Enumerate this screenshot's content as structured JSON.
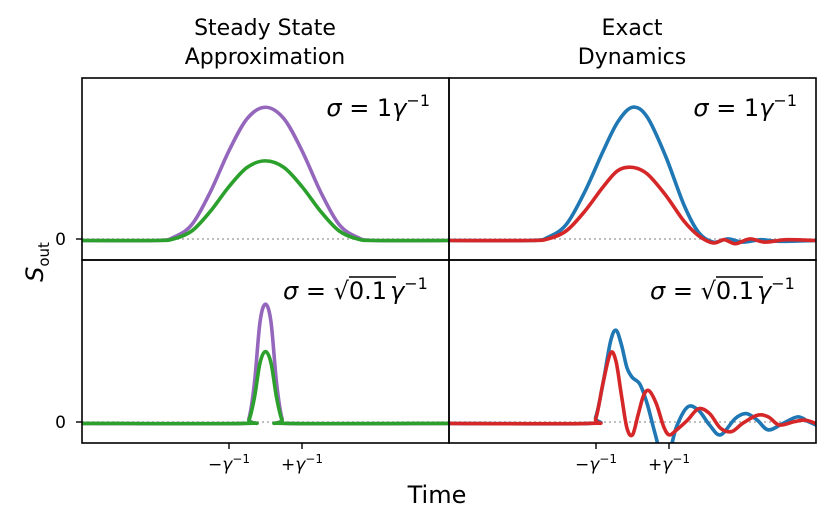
{
  "column_titles": {
    "left": [
      "Steady State",
      "Approximation"
    ],
    "right": [
      "Exact",
      "Dynamics"
    ]
  },
  "annotations": {
    "top": {
      "sigma": "σ",
      "eq": " = 1",
      "gamma": "γ",
      "sup": "−1"
    },
    "bottom": {
      "sigma": "σ",
      "eq": " = ",
      "sqrt": "√",
      "arg": "0.1",
      "gamma": "γ",
      "sup": "−1"
    }
  },
  "axes": {
    "ylabel": {
      "base": "S",
      "sub": "out"
    },
    "xlabel": "Time",
    "ytick": "0",
    "xticks": [
      {
        "sign": "−",
        "base": "γ",
        "sup": "−1",
        "value": -1
      },
      {
        "sign": "+",
        "base": "γ",
        "sup": "−1",
        "value": 1
      }
    ]
  },
  "colors": {
    "purple": "#9467bd",
    "green": "#2ca02c",
    "blue": "#1f77b4",
    "red": "#d62728",
    "zero_line": "#aaaaaa"
  },
  "chart_data": [
    {
      "panel": "top-left",
      "type": "line",
      "xlim": [
        -5,
        5
      ],
      "ylim": [
        -0.12,
        1.0
      ],
      "series": [
        {
          "color": "purple",
          "points": [
            [
              -5,
              0
            ],
            [
              -3,
              0
            ],
            [
              -2.5,
              0.02
            ],
            [
              -2,
              0.1
            ],
            [
              -1.5,
              0.3
            ],
            [
              -1,
              0.55
            ],
            [
              -0.5,
              0.75
            ],
            [
              0,
              0.82
            ],
            [
              0.5,
              0.75
            ],
            [
              1,
              0.55
            ],
            [
              1.5,
              0.3
            ],
            [
              2,
              0.1
            ],
            [
              2.5,
              0.02
            ],
            [
              3,
              0
            ],
            [
              5,
              0
            ]
          ]
        },
        {
          "color": "green",
          "points": [
            [
              -5,
              0
            ],
            [
              -3,
              0
            ],
            [
              -2.5,
              0.01
            ],
            [
              -2,
              0.06
            ],
            [
              -1.5,
              0.18
            ],
            [
              -1,
              0.33
            ],
            [
              -0.5,
              0.45
            ],
            [
              0,
              0.49
            ],
            [
              0.5,
              0.45
            ],
            [
              1,
              0.33
            ],
            [
              1.5,
              0.18
            ],
            [
              2,
              0.06
            ],
            [
              2.5,
              0.01
            ],
            [
              3,
              0
            ],
            [
              5,
              0
            ]
          ]
        }
      ]
    },
    {
      "panel": "top-right",
      "type": "line",
      "xlim": [
        -5,
        5
      ],
      "ylim": [
        -0.12,
        1.0
      ],
      "series": [
        {
          "color": "blue",
          "points": [
            [
              -5,
              0
            ],
            [
              -2.8,
              0
            ],
            [
              -2.3,
              0.02
            ],
            [
              -1.8,
              0.1
            ],
            [
              -1.3,
              0.3
            ],
            [
              -0.8,
              0.55
            ],
            [
              -0.4,
              0.73
            ],
            [
              0,
              0.82
            ],
            [
              0.4,
              0.76
            ],
            [
              0.9,
              0.52
            ],
            [
              1.4,
              0.22
            ],
            [
              1.8,
              0.05
            ],
            [
              2.2,
              -0.01
            ],
            [
              2.6,
              0.01
            ],
            [
              3.0,
              -0.01
            ],
            [
              3.5,
              0.005
            ],
            [
              4.0,
              -0.005
            ],
            [
              5,
              0
            ]
          ]
        },
        {
          "color": "red",
          "points": [
            [
              -5,
              0
            ],
            [
              -2.8,
              0
            ],
            [
              -2.3,
              0.01
            ],
            [
              -1.8,
              0.06
            ],
            [
              -1.3,
              0.18
            ],
            [
              -0.8,
              0.33
            ],
            [
              -0.4,
              0.43
            ],
            [
              0,
              0.45
            ],
            [
              0.4,
              0.41
            ],
            [
              0.9,
              0.28
            ],
            [
              1.4,
              0.12
            ],
            [
              1.8,
              0.03
            ],
            [
              2.2,
              -0.015
            ],
            [
              2.5,
              0.005
            ],
            [
              2.8,
              -0.02
            ],
            [
              3.2,
              0.01
            ],
            [
              3.6,
              -0.01
            ],
            [
              4.2,
              0.005
            ],
            [
              5,
              0
            ]
          ]
        }
      ]
    },
    {
      "panel": "bottom-left",
      "type": "line",
      "xlim": [
        -5,
        5
      ],
      "ylim": [
        -0.12,
        1.0
      ],
      "series": [
        {
          "color": "purple",
          "points": [
            [
              -5,
              0
            ],
            [
              -0.6,
              0
            ],
            [
              -0.45,
              0.03
            ],
            [
              -0.3,
              0.25
            ],
            [
              -0.15,
              0.62
            ],
            [
              0,
              0.73
            ],
            [
              0.15,
              0.62
            ],
            [
              0.3,
              0.25
            ],
            [
              0.45,
              0.03
            ],
            [
              0.6,
              0
            ],
            [
              5,
              0
            ]
          ]
        },
        {
          "color": "green",
          "points": [
            [
              -5,
              0
            ],
            [
              -0.6,
              0
            ],
            [
              -0.45,
              0.02
            ],
            [
              -0.3,
              0.16
            ],
            [
              -0.15,
              0.37
            ],
            [
              0,
              0.44
            ],
            [
              0.15,
              0.37
            ],
            [
              0.3,
              0.16
            ],
            [
              0.45,
              0.02
            ],
            [
              0.6,
              0
            ],
            [
              5,
              0
            ]
          ]
        }
      ]
    },
    {
      "panel": "bottom-right",
      "type": "line",
      "xlim": [
        -5,
        5
      ],
      "ylim": [
        -0.12,
        1.0
      ],
      "series": [
        {
          "color": "blue",
          "points": [
            [
              -5,
              0
            ],
            [
              -1.2,
              0
            ],
            [
              -1.0,
              0.04
            ],
            [
              -0.8,
              0.25
            ],
            [
              -0.6,
              0.5
            ],
            [
              -0.45,
              0.57
            ],
            [
              -0.3,
              0.48
            ],
            [
              -0.15,
              0.34
            ],
            [
              0,
              0.28
            ],
            [
              0.2,
              0.24
            ],
            [
              0.4,
              0.12
            ],
            [
              0.6,
              -0.05
            ],
            [
              0.8,
              -0.2
            ],
            [
              1.0,
              -0.18
            ],
            [
              1.2,
              -0.02
            ],
            [
              1.5,
              0.1
            ],
            [
              1.8,
              0.08
            ],
            [
              2.1,
              -0.01
            ],
            [
              2.4,
              -0.07
            ],
            [
              2.8,
              0.03
            ],
            [
              3.1,
              0.06
            ],
            [
              3.4,
              0.02
            ],
            [
              3.7,
              -0.04
            ],
            [
              4.1,
              0.0
            ],
            [
              4.5,
              0.04
            ],
            [
              4.8,
              0.01
            ],
            [
              5,
              -0.01
            ]
          ]
        },
        {
          "color": "red",
          "points": [
            [
              -5,
              0
            ],
            [
              -1.2,
              0
            ],
            [
              -1.0,
              0.03
            ],
            [
              -0.8,
              0.25
            ],
            [
              -0.6,
              0.43
            ],
            [
              -0.45,
              0.38
            ],
            [
              -0.3,
              0.17
            ],
            [
              -0.15,
              -0.03
            ],
            [
              0,
              -0.07
            ],
            [
              0.15,
              0.05
            ],
            [
              0.3,
              0.17
            ],
            [
              0.45,
              0.2
            ],
            [
              0.65,
              0.12
            ],
            [
              0.85,
              -0.02
            ],
            [
              1.0,
              -0.07
            ],
            [
              1.2,
              -0.04
            ],
            [
              1.5,
              0.02
            ],
            [
              1.8,
              0.09
            ],
            [
              2.1,
              0.06
            ],
            [
              2.4,
              -0.03
            ],
            [
              2.7,
              -0.05
            ],
            [
              3.0,
              0.0
            ],
            [
              3.4,
              0.05
            ],
            [
              3.7,
              0.04
            ],
            [
              4.0,
              -0.01
            ],
            [
              4.4,
              0.01
            ],
            [
              4.7,
              0.02
            ],
            [
              5,
              0.0
            ]
          ]
        }
      ]
    }
  ]
}
